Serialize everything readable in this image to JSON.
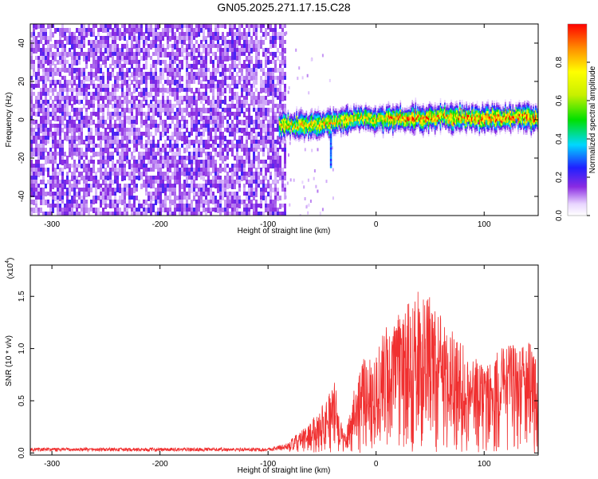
{
  "title": "GN05.2025.271.17.15.C28",
  "chart_data": [
    {
      "type": "heatmap",
      "title": "GN05.2025.271.17.15.C28",
      "xlabel": "Height of straight line (km)",
      "ylabel": "Frequency (Hz)",
      "xlim": [
        -320,
        150
      ],
      "ylim": [
        -50,
        50
      ],
      "xticks": [
        "-300",
        "-200",
        "-100",
        "0",
        "100"
      ],
      "yticks": [
        "40",
        "20",
        "0",
        "-20",
        "-40"
      ],
      "colorbar": {
        "label": "Normalized spectral amplitude",
        "range": [
          0,
          1
        ],
        "ticks": [
          "0.0",
          "0.2",
          "0.4",
          "0.6",
          "0.8"
        ]
      },
      "noise_region": {
        "x": [
          -320,
          -85
        ],
        "freq": [
          -50,
          50
        ],
        "amplitude": 0.15
      },
      "gap_region": {
        "x": [
          -85,
          -40
        ]
      },
      "signal_band": {
        "x": [
          -90,
          150
        ],
        "center_freq": [
          [
            -90,
            -2
          ],
          [
            -80,
            -3
          ],
          [
            -70,
            -3
          ],
          [
            -60,
            -3
          ],
          [
            -50,
            -2
          ],
          [
            -40,
            -1
          ],
          [
            -30,
            0
          ],
          [
            -20,
            1
          ],
          [
            -10,
            1
          ],
          [
            0,
            0
          ],
          [
            10,
            1
          ],
          [
            20,
            1
          ],
          [
            30,
            0
          ],
          [
            40,
            1
          ],
          [
            50,
            1
          ],
          [
            60,
            2
          ],
          [
            70,
            1
          ],
          [
            80,
            1
          ],
          [
            90,
            1
          ],
          [
            100,
            1
          ],
          [
            110,
            1
          ],
          [
            120,
            1
          ],
          [
            130,
            2
          ],
          [
            140,
            1
          ],
          [
            150,
            0
          ]
        ],
        "peak_amplitude": 0.95,
        "spike": {
          "x": -42,
          "freq_min": -24
        }
      }
    },
    {
      "type": "line",
      "xlabel": "Height of straight line (km)",
      "ylabel": "SNR (10 * v/v)",
      "y_scale_label": "(x10",
      "y_scale_exponent": "4",
      "y_scale_suffix": ")",
      "xlim": [
        -320,
        150
      ],
      "ylim": [
        -0.02,
        1.8
      ],
      "xticks": [
        "-300",
        "-200",
        "-100",
        "0",
        "100"
      ],
      "yticks": [
        "0.0",
        "0.5",
        "1.0",
        "1.5"
      ],
      "series": [
        {
          "name": "SNR",
          "color": "#f03030",
          "envelope": [
            [
              -320,
              0.05
            ],
            [
              -200,
              0.05
            ],
            [
              -100,
              0.05
            ],
            [
              -80,
              0.1
            ],
            [
              -65,
              0.2
            ],
            [
              -55,
              0.3
            ],
            [
              -45,
              0.45
            ],
            [
              -38,
              0.55
            ],
            [
              -33,
              0.25
            ],
            [
              -28,
              0.15
            ],
            [
              -20,
              0.55
            ],
            [
              -10,
              0.75
            ],
            [
              0,
              0.8
            ],
            [
              10,
              1.0
            ],
            [
              20,
              1.05
            ],
            [
              30,
              1.15
            ],
            [
              40,
              1.25
            ],
            [
              50,
              1.2
            ],
            [
              60,
              1.05
            ],
            [
              70,
              0.95
            ],
            [
              80,
              0.85
            ],
            [
              90,
              0.75
            ],
            [
              100,
              0.7
            ],
            [
              110,
              0.75
            ],
            [
              120,
              0.85
            ],
            [
              130,
              0.9
            ],
            [
              140,
              0.85
            ],
            [
              150,
              0.8
            ]
          ]
        }
      ]
    }
  ]
}
